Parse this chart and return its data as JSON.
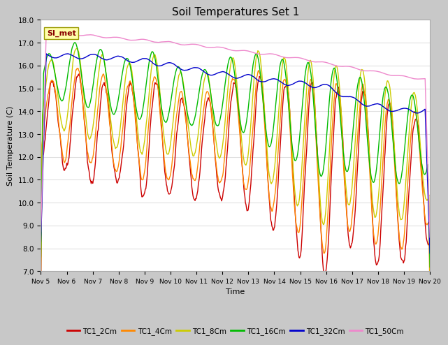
{
  "title": "Soil Temperatures Set 1",
  "xlabel": "Time",
  "ylabel": "Soil Temperature (C)",
  "ylim": [
    7.0,
    18.0
  ],
  "yticks": [
    7.0,
    8.0,
    9.0,
    10.0,
    11.0,
    12.0,
    13.0,
    14.0,
    15.0,
    16.0,
    17.0,
    18.0
  ],
  "xtick_labels": [
    "Nov 5",
    "Nov 6",
    "Nov 7",
    "Nov 8",
    "Nov 9",
    "Nov 10",
    "Nov 11",
    "Nov 12",
    "Nov 13",
    "Nov 14",
    "Nov 15",
    "Nov 16",
    "Nov 17",
    "Nov 18",
    "Nov 19",
    "Nov 20"
  ],
  "legend_labels": [
    "TC1_2Cm",
    "TC1_4Cm",
    "TC1_8Cm",
    "TC1_16Cm",
    "TC1_32Cm",
    "TC1_50Cm"
  ],
  "colors": {
    "TC1_2Cm": "#cc0000",
    "TC1_4Cm": "#ff8800",
    "TC1_8Cm": "#cccc00",
    "TC1_16Cm": "#00bb00",
    "TC1_32Cm": "#0000cc",
    "TC1_50Cm": "#ee88cc"
  },
  "annotation_text": "SI_met",
  "fig_bg": "#c8c8c8",
  "plot_bg": "#ffffff",
  "grid_color": "#e0e0e0"
}
